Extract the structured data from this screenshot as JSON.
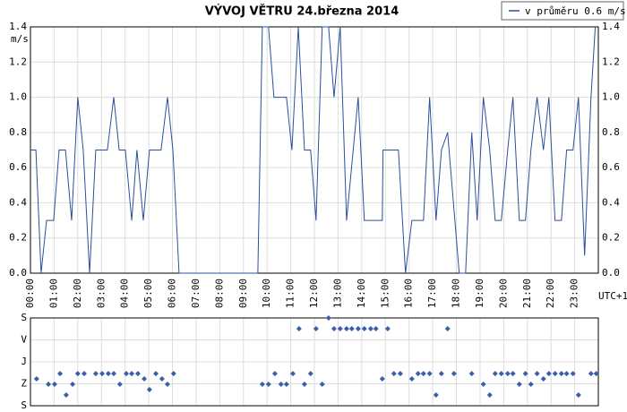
{
  "chart_data": [
    {
      "type": "line",
      "title": "VÝVOJ VĚTRU  24.března 2014",
      "y_label": "m/s",
      "x_label": "UTC+1",
      "xlim": [
        0,
        24
      ],
      "ylim": [
        0,
        1.4
      ],
      "grid": true,
      "legend": "top-right",
      "xticks": [
        {
          "value": 0,
          "label": "00:00"
        },
        {
          "value": 1,
          "label": "01:00"
        },
        {
          "value": 2,
          "label": "02:00"
        },
        {
          "value": 3,
          "label": "03:00"
        },
        {
          "value": 4,
          "label": "04:00"
        },
        {
          "value": 5,
          "label": "05:00"
        },
        {
          "value": 6,
          "label": "06:00"
        },
        {
          "value": 7,
          "label": "07:00"
        },
        {
          "value": 8,
          "label": "08:00"
        },
        {
          "value": 9,
          "label": "09:00"
        },
        {
          "value": 10,
          "label": "10:00"
        },
        {
          "value": 11,
          "label": "11:00"
        },
        {
          "value": 12,
          "label": "12:00"
        },
        {
          "value": 13,
          "label": "13:00"
        },
        {
          "value": 14,
          "label": "14:00"
        },
        {
          "value": 15,
          "label": "15:00"
        },
        {
          "value": 16,
          "label": "16:00"
        },
        {
          "value": 17,
          "label": "17:00"
        },
        {
          "value": 18,
          "label": "18:00"
        },
        {
          "value": 19,
          "label": "19:00"
        },
        {
          "value": 20,
          "label": "20:00"
        },
        {
          "value": 21,
          "label": "21:00"
        },
        {
          "value": 22,
          "label": "22:00"
        },
        {
          "value": 23,
          "label": "23:00"
        }
      ],
      "yticks": [
        {
          "value": 0,
          "label": "0.0"
        },
        0.2,
        0.4,
        0.6,
        0.8,
        {
          "value": 1,
          "label": "1.0"
        },
        1.2,
        1.4
      ],
      "series": [
        {
          "name": "v průměru 0.6 m/s",
          "color": "#2b4f9e",
          "x": [
            0,
            0.23,
            0.45,
            0.68,
            0.98,
            1.21,
            1.48,
            1.74,
            2.0,
            2.23,
            2.5,
            2.76,
            3.25,
            3.52,
            3.75,
            4.01,
            4.28,
            4.5,
            4.77,
            5.03,
            5.52,
            5.79,
            6.02,
            6.28,
            9.61,
            9.8,
            10.06,
            10.29,
            10.82,
            11.05,
            11.32,
            11.58,
            11.84,
            12.07,
            12.33,
            12.6,
            12.83,
            13.09,
            13.36,
            13.85,
            14.11,
            14.38,
            14.87,
            14.9,
            15.55,
            15.85,
            16.12,
            16.61,
            16.87,
            17.14,
            17.37,
            17.63,
            18.12,
            18.39,
            18.65,
            18.88,
            19.14,
            19.41,
            19.64,
            19.9,
            20.17,
            20.39,
            20.66,
            20.92,
            21.15,
            21.41,
            21.68,
            21.91,
            22.17,
            22.44,
            22.66,
            22.93,
            23.16,
            23.42,
            23.69,
            23.87
          ],
          "values": [
            0.7,
            0.7,
            0,
            0.3,
            0.3,
            0.7,
            0.7,
            0.3,
            1.0,
            0.7,
            0,
            0.7,
            0.7,
            1.0,
            0.7,
            0.7,
            0.3,
            0.7,
            0.3,
            0.7,
            0.7,
            1.0,
            0.7,
            0,
            0,
            1.4,
            1.4,
            1.0,
            1.0,
            0.7,
            1.4,
            0.7,
            0.7,
            0.3,
            1.4,
            1.4,
            1.0,
            1.4,
            0.3,
            1.0,
            0.3,
            0.3,
            0.3,
            0.7,
            0.7,
            0,
            0.3,
            0.3,
            1.0,
            0.3,
            0.7,
            0.8,
            0,
            0,
            0.8,
            0.3,
            1.0,
            0.7,
            0.3,
            0.3,
            0.7,
            1.0,
            0.3,
            0.3,
            0.7,
            1.0,
            0.7,
            1.0,
            0.3,
            0.3,
            0.7,
            0.7,
            1.0,
            0.1,
            1.0,
            1.4
          ]
        }
      ]
    },
    {
      "type": "scatter",
      "xlim": [
        0,
        24
      ],
      "ylim": [
        0,
        360
      ],
      "y_inverted": true,
      "grid": true,
      "yticks": [
        {
          "value": 0,
          "label": "S"
        },
        {
          "value": 90,
          "label": "V"
        },
        {
          "value": 180,
          "label": "J"
        },
        {
          "value": 270,
          "label": "Z"
        },
        {
          "value": 360,
          "label": "S"
        }
      ],
      "series": [
        {
          "color": "#3a5fa8",
          "x": [
            0.26,
            0.76,
            1.02,
            1.25,
            1.51,
            1.78,
            2.0,
            2.27,
            2.76,
            3.03,
            3.29,
            3.52,
            3.78,
            4.05,
            4.28,
            4.54,
            4.81,
            5.03,
            5.3,
            5.56,
            5.79,
            6.05,
            9.8,
            10.06,
            10.33,
            10.59,
            10.82,
            11.09,
            11.35,
            11.58,
            11.84,
            12.07,
            12.33,
            12.6,
            12.83,
            13.09,
            13.36,
            13.58,
            13.85,
            14.11,
            14.38,
            14.6,
            14.87,
            15.1,
            15.36,
            15.63,
            16.12,
            16.38,
            16.61,
            16.87,
            17.14,
            17.37,
            17.63,
            17.9,
            18.65,
            19.14,
            19.41,
            19.64,
            19.9,
            20.17,
            20.39,
            20.66,
            20.92,
            21.15,
            21.41,
            21.68,
            21.91,
            22.17,
            22.44,
            22.66,
            22.93,
            23.16,
            23.69,
            23.91
          ],
          "values": [
            250,
            272,
            272,
            228,
            316,
            272,
            228,
            228,
            228,
            228,
            228,
            228,
            272,
            228,
            228,
            228,
            250,
            294,
            228,
            250,
            272,
            228,
            272,
            272,
            228,
            272,
            272,
            228,
            44,
            272,
            228,
            44,
            272,
            0,
            44,
            44,
            44,
            44,
            44,
            44,
            44,
            44,
            250,
            44,
            228,
            228,
            250,
            228,
            228,
            228,
            316,
            228,
            44,
            228,
            228,
            272,
            316,
            228,
            228,
            228,
            228,
            272,
            228,
            272,
            228,
            250,
            228,
            228,
            228,
            228,
            228,
            316,
            228,
            228
          ]
        }
      ]
    }
  ]
}
